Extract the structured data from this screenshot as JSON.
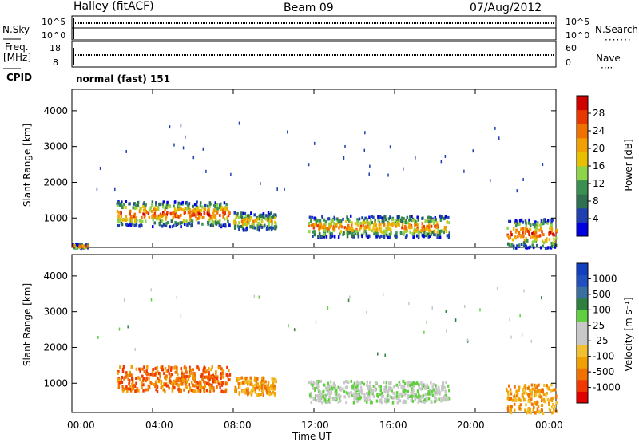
{
  "header": {
    "station": "Halley (fitACF)",
    "beam": "Beam 09",
    "date": "07/Aug/2012"
  },
  "panels": {
    "nsky_label": "N.Sky",
    "nsearch_label": "N.Search",
    "freq_label": "Freq.",
    "freq_unit": "[MHz]",
    "nave_label": "Nave",
    "cpid_label": "CPID",
    "cpid_value": "normal (fast) 151",
    "nsky_ticks": [
      "10^5",
      "10^0"
    ],
    "nsearch_ticks": [
      "10^5",
      "10^0"
    ],
    "freq_ticks": [
      "18",
      "8"
    ],
    "nave_ticks": [
      "60",
      "0"
    ]
  },
  "axes": {
    "xlabel": "Time UT",
    "ylabel": "Slant Range [km]",
    "x_ticks": [
      "00:00",
      "04:00",
      "08:00",
      "12:00",
      "16:00",
      "20:00",
      "00:00"
    ]
  },
  "colors": {
    "power_scale": [
      "#0000e0",
      "#1e40b0",
      "#2e7050",
      "#3a9050",
      "#8ed44a",
      "#e8c000",
      "#f0a000",
      "#f07000",
      "#e83800",
      "#d00000"
    ],
    "velocity_scale": [
      "#e00000",
      "#f03800",
      "#f07000",
      "#f0a000",
      "#f0c030",
      "#c8c8c8",
      "#c8c8c8",
      "#60d040",
      "#2e8040",
      "#3a70a0",
      "#2050c0",
      "#1040c0"
    ]
  },
  "chart_data": [
    {
      "type": "heatmap",
      "name": "Power",
      "xlabel": "Time UT",
      "ylabel": "Slant Range [km]",
      "xlim": [
        0,
        24
      ],
      "ylim": [
        180,
        4600
      ],
      "y_ticks": [
        1000,
        2000,
        3000,
        4000
      ],
      "colorbar": {
        "label": "Power [dB]",
        "range": [
          0,
          30
        ],
        "ticks": [
          4,
          8,
          12,
          16,
          20,
          24,
          28
        ]
      },
      "echo_regions": [
        {
          "t_start": 2.2,
          "t_end": 7.8,
          "range_min": 800,
          "range_max": 1500,
          "peak_db": 28
        },
        {
          "t_start": 8.0,
          "t_end": 10.1,
          "range_min": 700,
          "range_max": 1200,
          "peak_db": 20
        },
        {
          "t_start": 11.7,
          "t_end": 18.7,
          "range_min": 500,
          "range_max": 1100,
          "peak_db": 24
        },
        {
          "t_start": 21.5,
          "t_end": 24.0,
          "range_min": 200,
          "range_max": 1000,
          "peak_db": 28
        },
        {
          "t_start": 0.0,
          "t_end": 0.8,
          "range_min": 200,
          "range_max": 300,
          "peak_db": 28
        }
      ]
    },
    {
      "type": "heatmap",
      "name": "Velocity",
      "xlabel": "Time UT",
      "ylabel": "Slant Range [km]",
      "xlim": [
        0,
        24
      ],
      "ylim": [
        180,
        4600
      ],
      "y_ticks": [
        1000,
        2000,
        3000,
        4000
      ],
      "colorbar": {
        "label": "Velocity [m s⁻¹]",
        "ticks": [
          "1000",
          "500",
          "100",
          "25",
          "-25",
          "-100",
          "-500",
          "-1000"
        ]
      },
      "echo_regions": [
        {
          "t_start": 2.2,
          "t_end": 7.8,
          "range_min": 800,
          "range_max": 1500,
          "velocity": -300
        },
        {
          "t_start": 8.0,
          "t_end": 10.1,
          "range_min": 700,
          "range_max": 1200,
          "velocity": -150
        },
        {
          "t_start": 11.7,
          "t_end": 18.7,
          "range_min": 500,
          "range_max": 1100,
          "velocity": 0
        },
        {
          "t_start": 21.5,
          "t_end": 24.0,
          "range_min": 200,
          "range_max": 1000,
          "velocity": -200
        }
      ]
    }
  ]
}
